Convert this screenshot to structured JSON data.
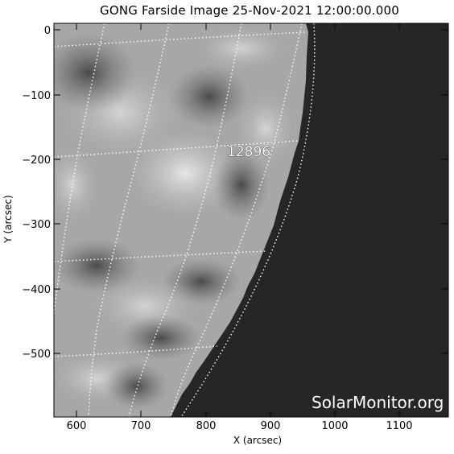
{
  "title": "GONG Farside Image 25-Nov-2021 12:00:00.000",
  "axes": {
    "xlabel": "X (arcsec)",
    "ylabel": "Y (arcsec)",
    "x_ticks": [
      "600",
      "700",
      "800",
      "900",
      "1000",
      "1100"
    ],
    "y_ticks": [
      "0",
      "−100",
      "−200",
      "−300",
      "−400",
      "−500"
    ]
  },
  "region": {
    "label": "12896"
  },
  "watermark": "SolarMonitor.org",
  "colors": {
    "space": "#262626",
    "grid": "#ffffff",
    "frame": "#000000"
  }
}
